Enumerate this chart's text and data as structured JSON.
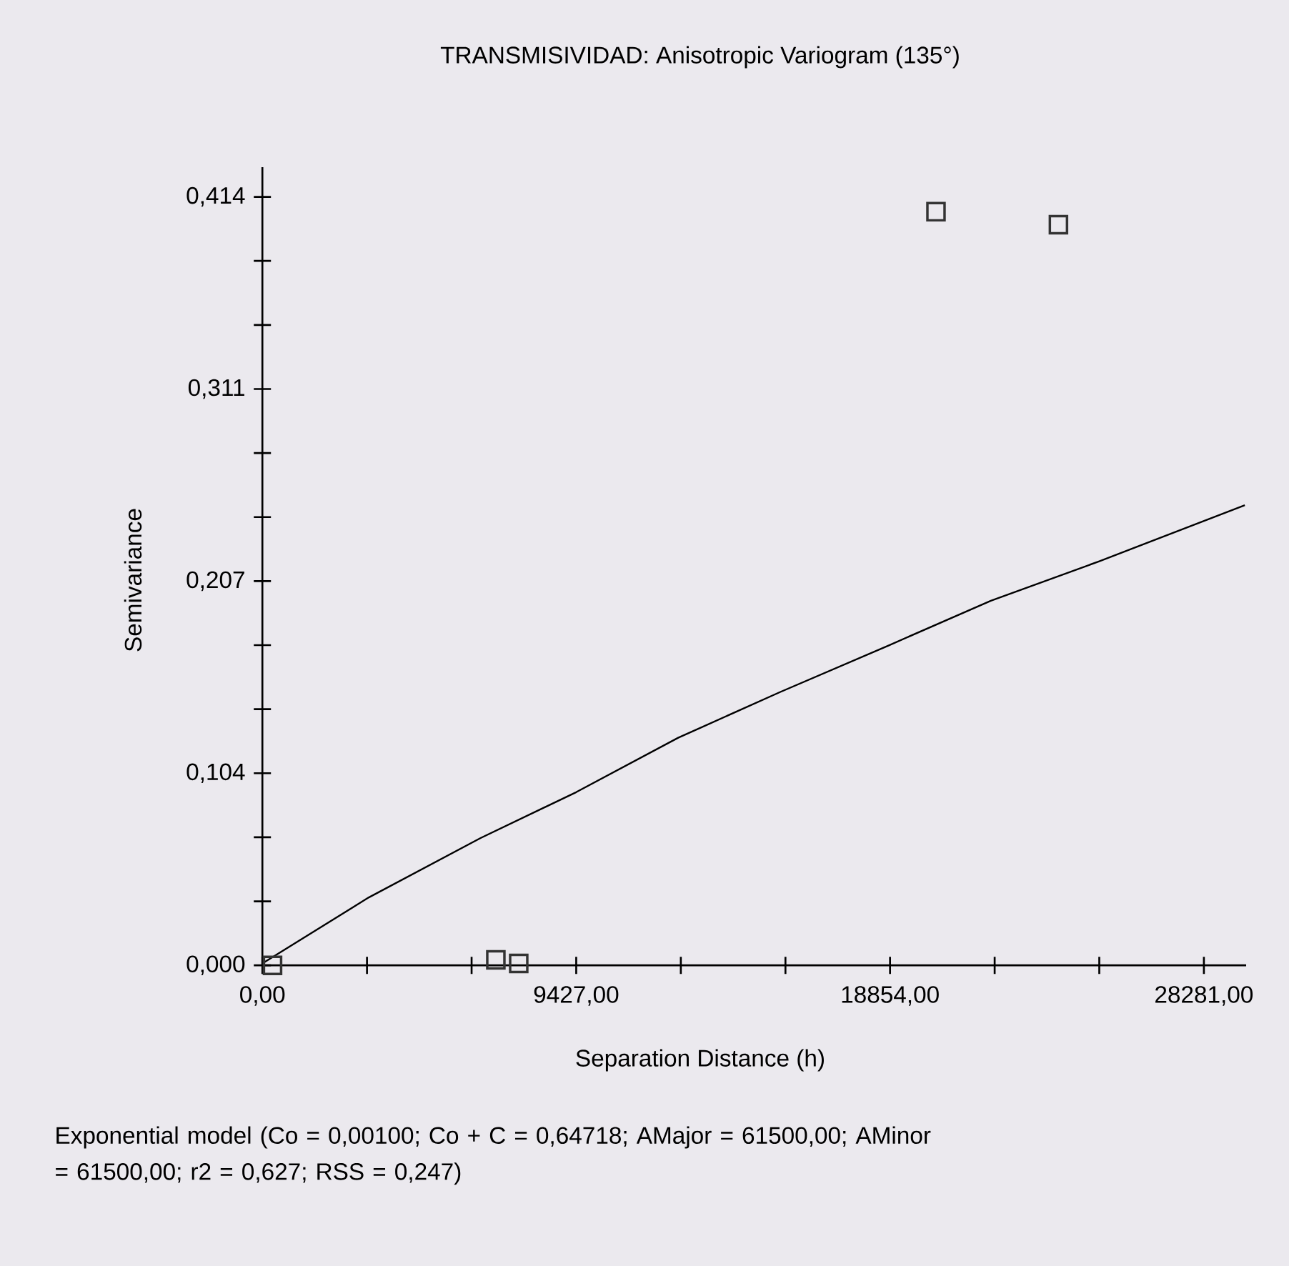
{
  "chart_data": {
    "type": "scatter",
    "title": "TRANSMISIVIDAD: Anisotropic Variogram (135°)",
    "xlabel": "Separation Distance (h)",
    "ylabel": "Semivariance",
    "annotations": [
      "Exponential model (Co = 0,00100; Co + C = 0,64718; AMajor = 61500,00; AMinor = 61500,00; r2 = 0,627; RSS = 0,247)"
    ],
    "xlim": [
      0,
      29550
    ],
    "ylim": [
      0,
      0.43
    ],
    "xticks": [
      {
        "value": 0,
        "label": "0,00"
      },
      {
        "value": 3142.33,
        "label": null
      },
      {
        "value": 6284.67,
        "label": null
      },
      {
        "value": 9427,
        "label": "9427,00"
      },
      {
        "value": 12569.33,
        "label": null
      },
      {
        "value": 15711.67,
        "label": null
      },
      {
        "value": 18854,
        "label": "18854,00"
      },
      {
        "value": 21996.33,
        "label": null
      },
      {
        "value": 25138.67,
        "label": null
      },
      {
        "value": 28281,
        "label": "28281,00"
      }
    ],
    "yticks": [
      {
        "value": 0,
        "label": "0,000"
      },
      {
        "value": 0.0345,
        "label": null
      },
      {
        "value": 0.069,
        "label": null
      },
      {
        "value": 0.1035,
        "label": "0,104"
      },
      {
        "value": 0.138,
        "label": null
      },
      {
        "value": 0.1725,
        "label": null
      },
      {
        "value": 0.207,
        "label": "0,207"
      },
      {
        "value": 0.2415,
        "label": null
      },
      {
        "value": 0.276,
        "label": null
      },
      {
        "value": 0.3105,
        "label": "0,311"
      },
      {
        "value": 0.345,
        "label": null
      },
      {
        "value": 0.3795,
        "label": null
      },
      {
        "value": 0.414,
        "label": "0,414"
      }
    ],
    "grid": false,
    "legend": false,
    "series": [
      {
        "marker": "square",
        "color": "#333333",
        "x": [
          305,
          7013,
          7700,
          20234,
          23912
        ],
        "values": [
          0.0,
          0.003,
          0.001,
          0.406,
          0.399
        ]
      },
      {
        "type": "line",
        "marker": "none",
        "line_style": "solid",
        "color": "#000000",
        "x": [
          0,
          3198,
          6554,
          9426,
          12490,
          15560,
          18818,
          21882,
          25140,
          29510
        ],
        "values": [
          0.001,
          0.0366,
          0.0686,
          0.0933,
          0.1226,
          0.1473,
          0.1724,
          0.1964,
          0.2177,
          0.2479
        ]
      }
    ]
  }
}
